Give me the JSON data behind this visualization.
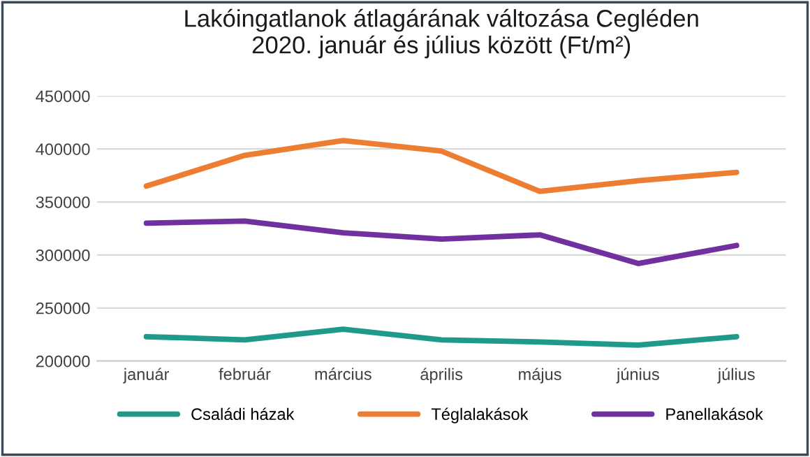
{
  "chart_data": {
    "type": "line",
    "title": "Lakóingatlanok átlagárának változása Cegléden\n2020. január és július között (Ft/m²)",
    "categories": [
      "január",
      "február",
      "március",
      "április",
      "május",
      "június",
      "július"
    ],
    "series": [
      {
        "name": "Családi házak",
        "color": "#1f9a8a",
        "values": [
          223000,
          220000,
          230000,
          220000,
          218000,
          215000,
          223000
        ]
      },
      {
        "name": "Téglalakások",
        "color": "#ed7d31",
        "values": [
          365000,
          394000,
          408000,
          398000,
          360000,
          370000,
          378000
        ]
      },
      {
        "name": "Panellakások",
        "color": "#7030a0",
        "values": [
          330000,
          332000,
          321000,
          315000,
          319000,
          292000,
          309000
        ]
      }
    ],
    "ylim": [
      200000,
      450000
    ],
    "yticks": [
      200000,
      250000,
      300000,
      350000,
      400000,
      450000
    ],
    "grid": "y",
    "legend": "bottom",
    "marker": "none",
    "line_style": "solid"
  }
}
